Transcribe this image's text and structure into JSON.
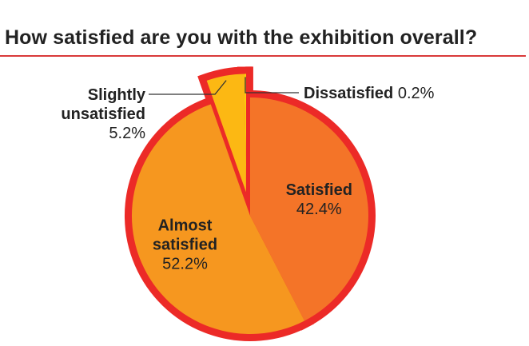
{
  "chart_data": {
    "type": "pie",
    "title": "How satisfied are you with the exhibition overall?",
    "slices": [
      {
        "name": "Satisfied",
        "label_lines": [
          "Satisfied"
        ],
        "pct_label": "42.4%",
        "value": 42.4,
        "color": "#f47428",
        "exploded": false,
        "label_position": "inside"
      },
      {
        "name": "Almost satisfied",
        "label_lines": [
          "Almost",
          "satisfied"
        ],
        "pct_label": "52.2%",
        "value": 52.2,
        "color": "#f6971f",
        "exploded": false,
        "label_position": "inside"
      },
      {
        "name": "Slightly unsatisfied",
        "label_lines": [
          "Slightly",
          "unsatisfied"
        ],
        "pct_label": "5.2%",
        "value": 5.2,
        "color": "#fcb813",
        "exploded": true,
        "label_position": "outside-left"
      },
      {
        "name": "Dissatisfied",
        "label_lines": [
          "Dissatisfied"
        ],
        "pct_label": "0.2%",
        "value": 0.2,
        "color": "#fcd80a",
        "exploded": true,
        "label_position": "outside-right"
      }
    ],
    "start_angle_deg": 0,
    "direction": "clockwise",
    "border_color": "#ec2a27",
    "legend": "none"
  }
}
